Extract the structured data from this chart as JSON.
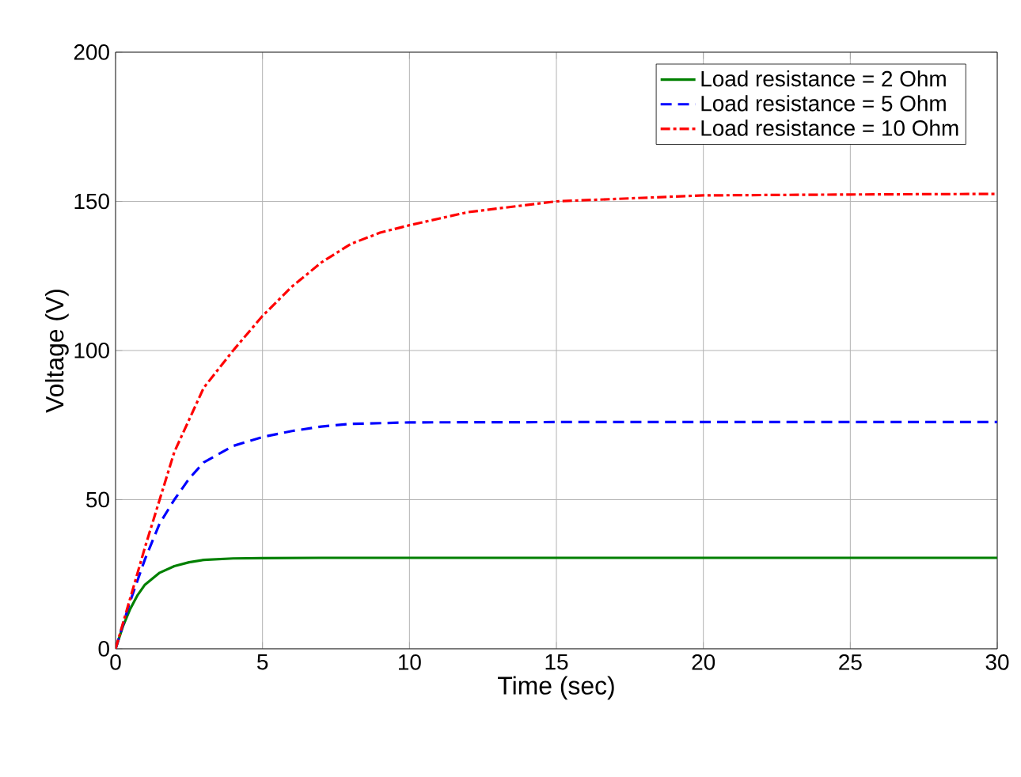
{
  "chart_data": {
    "type": "line",
    "xlabel": "Time (sec)",
    "ylabel": "Voltage (V)",
    "xlim": [
      0,
      30
    ],
    "ylim": [
      0,
      200
    ],
    "xticks": [
      0,
      5,
      10,
      15,
      20,
      25,
      30
    ],
    "yticks": [
      0,
      50,
      100,
      150,
      200
    ],
    "grid": true,
    "legend": "top right",
    "marker": "none",
    "series": [
      {
        "name": "Load resistance = 2 Ohm",
        "color": "#008000",
        "line_style": "solid",
        "x": [
          0,
          0.25,
          0.5,
          0.75,
          1,
          1.5,
          2,
          2.5,
          3,
          4,
          5,
          7,
          10,
          15,
          20,
          25,
          30
        ],
        "values": [
          0,
          7.5,
          13.4,
          18,
          21.5,
          25.5,
          27.7,
          29,
          29.8,
          30.3,
          30.4,
          30.5,
          30.5,
          30.5,
          30.5,
          30.5,
          30.5
        ]
      },
      {
        "name": "Load resistance = 5 Ohm",
        "color": "#0000ff",
        "line_style": "dashed",
        "x": [
          0,
          0.5,
          1,
          1.5,
          2,
          2.5,
          3,
          4,
          5,
          6,
          7,
          8,
          10,
          15,
          20,
          25,
          30
        ],
        "values": [
          0,
          16,
          30,
          42,
          50,
          57,
          62.5,
          68,
          71,
          73,
          74.5,
          75.4,
          75.9,
          76,
          76,
          76,
          76
        ]
      },
      {
        "name": "Load resistance = 10 Ohm",
        "color": "#ff0000",
        "line_style": "dashdot",
        "x": [
          0,
          0.5,
          1,
          1.5,
          2,
          3,
          4,
          5,
          6,
          7,
          8,
          9,
          10,
          12,
          15,
          20,
          25,
          30
        ],
        "values": [
          0,
          17,
          34,
          50,
          66,
          87.5,
          100,
          111.6,
          121.4,
          129.5,
          135.7,
          139.5,
          142,
          146.4,
          150,
          152,
          152.3,
          152.5
        ]
      }
    ]
  }
}
